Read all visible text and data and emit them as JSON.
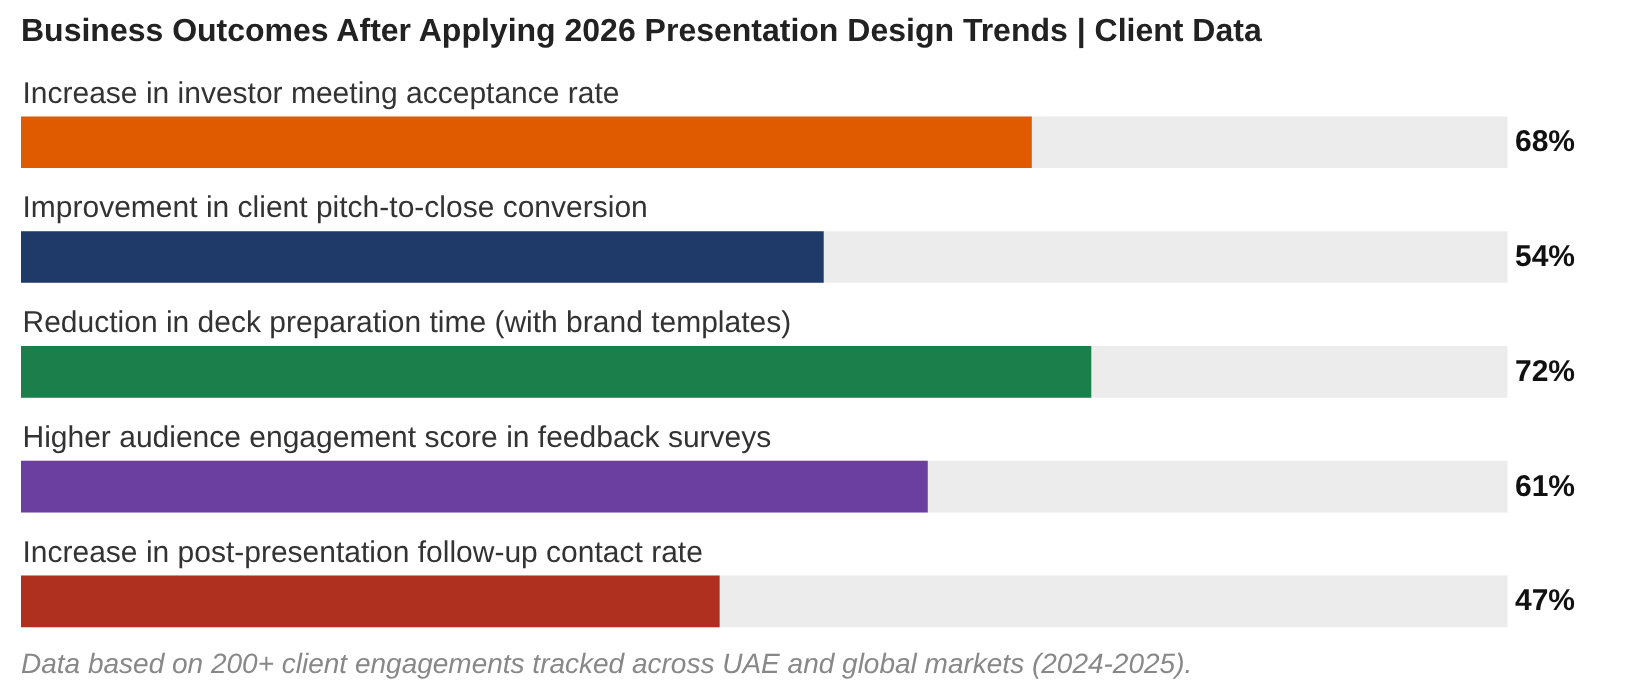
{
  "chart_data": {
    "type": "bar",
    "orientation": "horizontal",
    "title": "Business Outcomes After Applying 2026 Presentation Design Trends  |  Client Data",
    "categories": [
      "Increase in investor meeting acceptance rate",
      "Improvement in client pitch-to-close conversion",
      "Reduction in deck preparation time (with brand templates)",
      "Higher audience engagement score in feedback surveys",
      "Increase in post-presentation follow-up contact rate"
    ],
    "values": [
      68,
      54,
      72,
      61,
      47
    ],
    "colors": [
      "#e05a00",
      "#1f3a68",
      "#1a7f4b",
      "#6b3fa0",
      "#b03020"
    ],
    "value_labels": [
      "68%",
      "54%",
      "72%",
      "61%",
      "47%"
    ],
    "xlim": [
      0,
      100
    ],
    "annotations": [
      "Data based on 200+ client engagements tracked across UAE and global markets (2024-2025)."
    ]
  }
}
